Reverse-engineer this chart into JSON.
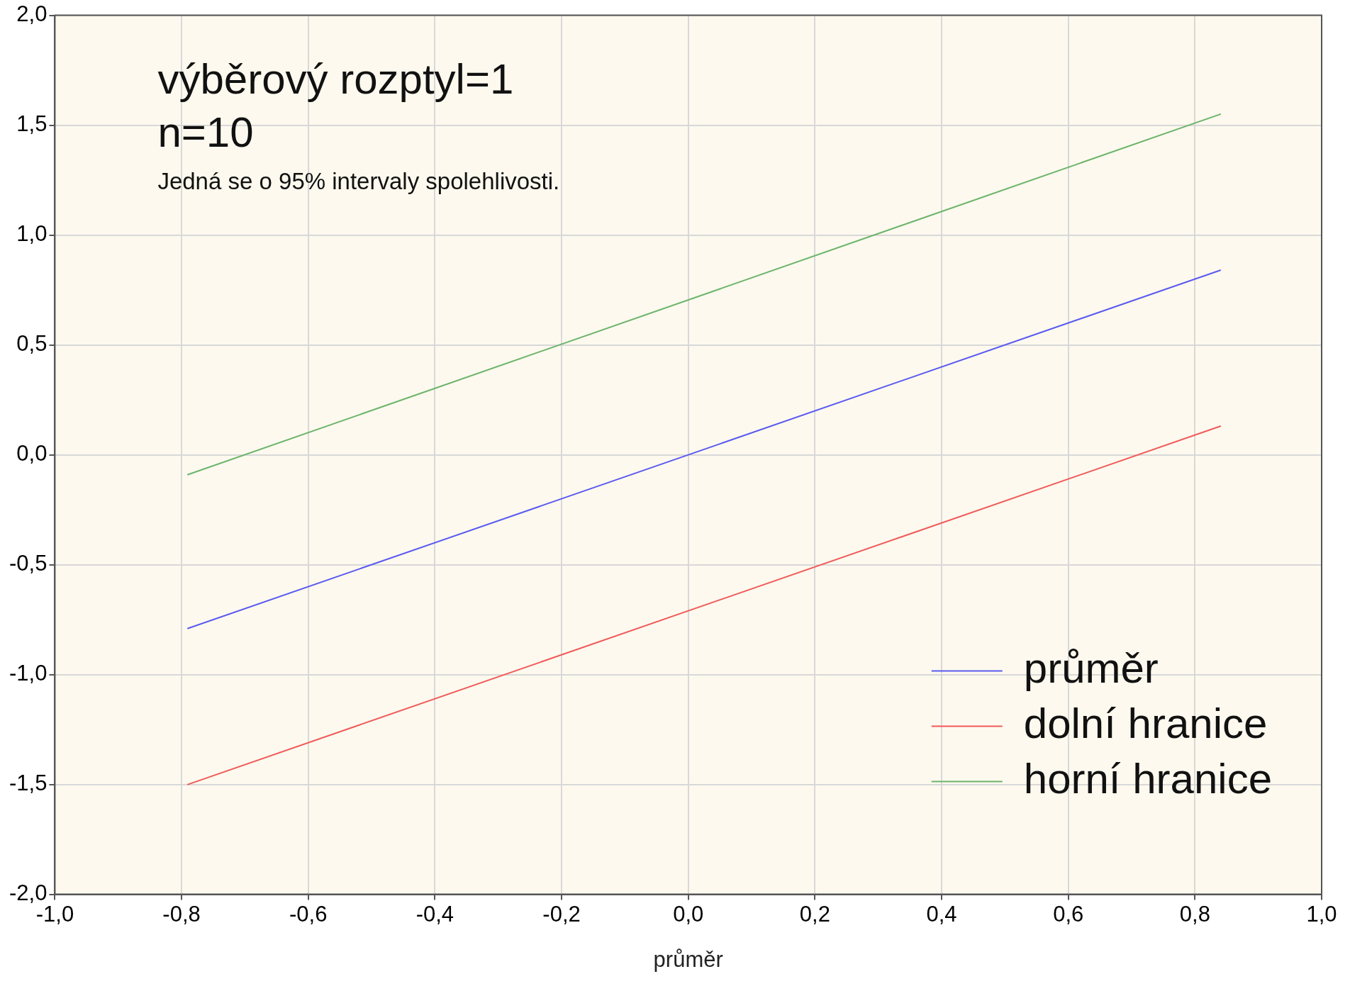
{
  "chart_data": {
    "type": "line",
    "xlabel": "průměr",
    "annotations": [
      "výběrový rozptyl=1",
      "n=10",
      "Jedná se o 95% intervaly spolehlivosti."
    ],
    "x": [
      -0.79,
      0.84
    ],
    "series": [
      {
        "name": "průměr",
        "color": "#5a5af0",
        "values": [
          -0.79,
          0.84
        ]
      },
      {
        "name": "dolní hranice",
        "color": "#f05a5a",
        "values": [
          -1.5,
          0.13
        ]
      },
      {
        "name": "horní hranice",
        "color": "#6cb46c",
        "values": [
          -0.09,
          1.55
        ]
      }
    ],
    "xlim": [
      -1,
      1
    ],
    "ylim": [
      -2,
      2
    ],
    "xticks": [
      {
        "value": -1,
        "label": "-1,0"
      },
      {
        "value": -0.8,
        "label": "-0,8"
      },
      {
        "value": -0.6,
        "label": "-0,6"
      },
      {
        "value": -0.4,
        "label": "-0,4"
      },
      {
        "value": -0.2,
        "label": "-0,2"
      },
      {
        "value": 0,
        "label": "0,0"
      },
      {
        "value": 0.2,
        "label": "0,2"
      },
      {
        "value": 0.4,
        "label": "0,4"
      },
      {
        "value": 0.6,
        "label": "0,6"
      },
      {
        "value": 0.8,
        "label": "0,8"
      },
      {
        "value": 1,
        "label": "1,0"
      }
    ],
    "yticks": [
      {
        "value": -2,
        "label": "-2,0"
      },
      {
        "value": -1.5,
        "label": "-1,5"
      },
      {
        "value": -1,
        "label": "-1,0"
      },
      {
        "value": -0.5,
        "label": "-0,5"
      },
      {
        "value": 0,
        "label": "0,0"
      },
      {
        "value": 0.5,
        "label": "0,5"
      },
      {
        "value": 1,
        "label": "1,0"
      },
      {
        "value": 1.5,
        "label": "1,5"
      },
      {
        "value": 2,
        "label": "2,0"
      }
    ],
    "grid": true,
    "legend": "bottom right",
    "marker": "none",
    "line_style": "solid"
  }
}
